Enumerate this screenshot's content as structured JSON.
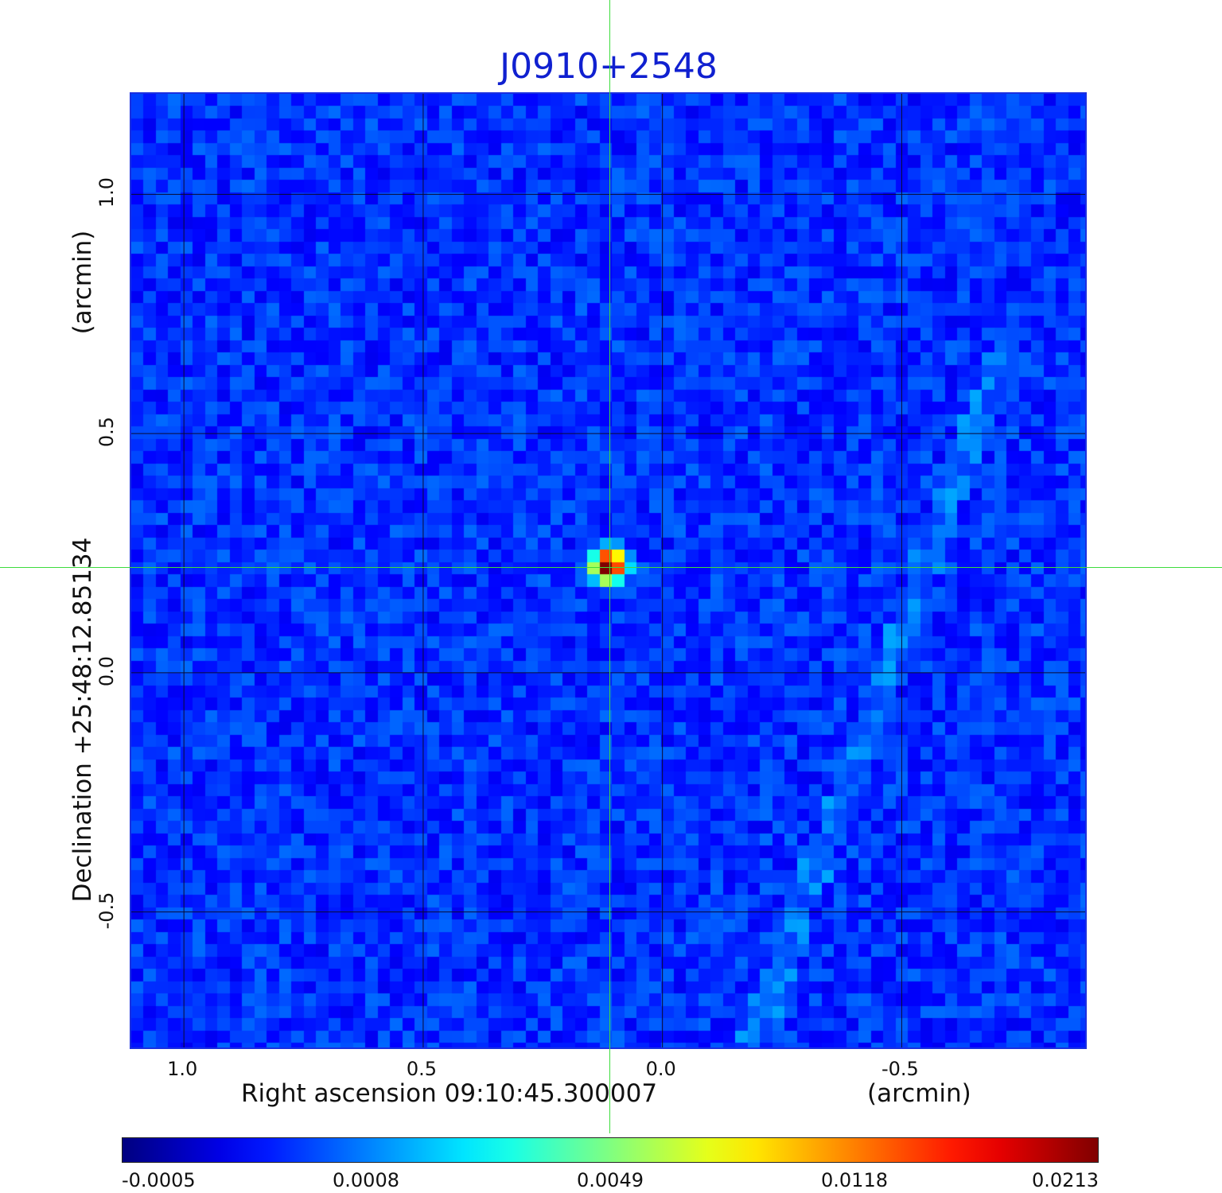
{
  "chart_data": {
    "type": "heatmap",
    "title": "J0910+2548",
    "xlabel": "Right ascension  09:10:45.300007",
    "x_unit": "(arcmin)",
    "ylabel": "Declination  +25:48:12.85134",
    "y_unit": "(arcmin)",
    "x_ticks": [
      "1.0",
      "0.5",
      "0.0",
      "-0.5"
    ],
    "y_ticks": [
      "1.0",
      "0.5",
      "0.0",
      "-0.5"
    ],
    "x_range": [
      1.11,
      -0.89
    ],
    "y_range": [
      -0.79,
      1.21
    ],
    "grid": true,
    "colormap": "jet",
    "colorbar_ticks": [
      "-0.0005",
      "0.0008",
      "0.0049",
      "0.0118",
      "0.0213"
    ],
    "color_range": [
      -0.0005,
      0.0213
    ],
    "peak": {
      "x": 0.11,
      "y": 0.22,
      "value": 0.0213
    },
    "crosshair": {
      "x": 0.11,
      "y": 0.22
    }
  }
}
